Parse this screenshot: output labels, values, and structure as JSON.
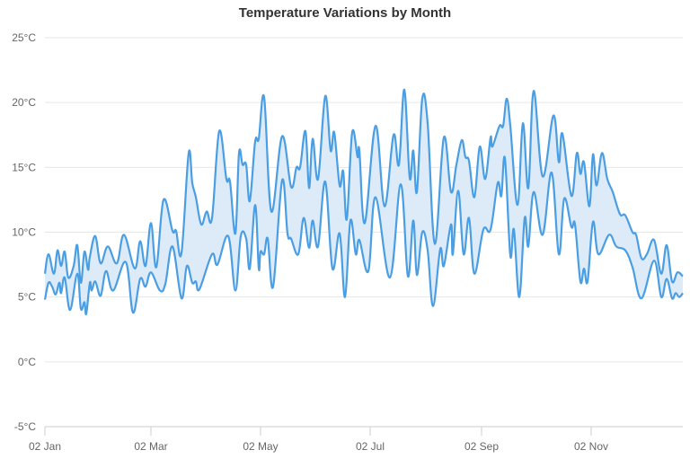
{
  "chart_data": {
    "type": "area",
    "subtype": "range",
    "title": "Temperature Variations by Month",
    "xlabel": "",
    "ylabel": "",
    "ylim": [
      -5,
      25
    ],
    "yticks": [
      -5,
      0,
      5,
      10,
      15,
      20,
      25
    ],
    "ytick_labels": [
      "-5°C",
      "0°C",
      "5°C",
      "10°C",
      "15°C",
      "20°C",
      "25°C"
    ],
    "xticks": [
      "02 Jan",
      "02 Mar",
      "02 May",
      "02 Jul",
      "02 Sep",
      "02 Nov"
    ],
    "xlim": [
      "02 Jan",
      "23 Dec"
    ],
    "grid": true,
    "legend": "none",
    "colors": {
      "line": "#4a9ee3",
      "fill": "#ddebf9",
      "grid": "#e6e6e6",
      "axis": "#cccccc",
      "text": "#666666",
      "title": "#333333"
    },
    "series": [
      {
        "role": "high",
        "points": [
          [
            "02 Jan",
            6.8
          ],
          [
            "04 Jan",
            8.3
          ],
          [
            "07 Jan",
            6.8
          ],
          [
            "09 Jan",
            8.6
          ],
          [
            "11 Jan",
            7.4
          ],
          [
            "13 Jan",
            8.5
          ],
          [
            "15 Jan",
            6.5
          ],
          [
            "18 Jan",
            7.4
          ],
          [
            "20 Jan",
            9.0
          ],
          [
            "22 Jan",
            6.1
          ],
          [
            "24 Jan",
            8.5
          ],
          [
            "26 Jan",
            7.1
          ],
          [
            "27 Jan",
            8.1
          ],
          [
            "30 Jan",
            9.7
          ],
          [
            "02 Feb",
            7.6
          ],
          [
            "06 Feb",
            8.9
          ],
          [
            "11 Feb",
            7.6
          ],
          [
            "15 Feb",
            9.8
          ],
          [
            "21 Feb",
            7.2
          ],
          [
            "24 Feb",
            9.3
          ],
          [
            "27 Feb",
            7.4
          ],
          [
            "02 Mar",
            10.7
          ],
          [
            "05 Mar",
            7.3
          ],
          [
            "09 Mar",
            12.5
          ],
          [
            "14 Mar",
            10.1
          ],
          [
            "16 Mar",
            10.1
          ],
          [
            "19 Mar",
            8.4
          ],
          [
            "23 Mar",
            16.1
          ],
          [
            "25 Mar",
            13.8
          ],
          [
            "27 Mar",
            12.7
          ],
          [
            "30 Mar",
            10.6
          ],
          [
            "02 Apr",
            11.6
          ],
          [
            "05 Apr",
            11.1
          ],
          [
            "09 Apr",
            17.8
          ],
          [
            "13 Apr",
            14.1
          ],
          [
            "15 Apr",
            13.9
          ],
          [
            "18 Apr",
            9.9
          ],
          [
            "20 Apr",
            16.1
          ],
          [
            "22 Apr",
            15.2
          ],
          [
            "24 Apr",
            15.2
          ],
          [
            "26 Apr",
            12.4
          ],
          [
            "29 Apr",
            17.0
          ],
          [
            "01 May",
            17.2
          ],
          [
            "04 May",
            20.4
          ],
          [
            "08 May",
            11.6
          ],
          [
            "14 May",
            17.4
          ],
          [
            "19 May",
            13.5
          ],
          [
            "22 May",
            15.0
          ],
          [
            "24 May",
            15.0
          ],
          [
            "27 May",
            17.8
          ],
          [
            "29 May",
            13.4
          ],
          [
            "31 May",
            17.2
          ],
          [
            "03 Jun",
            14.1
          ],
          [
            "07 Jun",
            20.5
          ],
          [
            "10 Jun",
            16.3
          ],
          [
            "12 Jun",
            17.7
          ],
          [
            "15 Jun",
            13.6
          ],
          [
            "17 Jun",
            14.7
          ],
          [
            "19 Jun",
            11.0
          ],
          [
            "22 Jun",
            17.7
          ],
          [
            "25 Jun",
            15.8
          ],
          [
            "26 Jun",
            16.3
          ],
          [
            "29 Jun",
            10.7
          ],
          [
            "05 Jul",
            18.2
          ],
          [
            "10 Jul",
            12.0
          ],
          [
            "15 Jul",
            17.5
          ],
          [
            "18 Jul",
            15.2
          ],
          [
            "21 Jul",
            21.0
          ],
          [
            "24 Jul",
            14.2
          ],
          [
            "26 Jul",
            16.3
          ],
          [
            "28 Jul",
            13.1
          ],
          [
            "31 Jul",
            20.3
          ],
          [
            "03 Aug",
            18.4
          ],
          [
            "07 Aug",
            9.1
          ],
          [
            "12 Aug",
            17.3
          ],
          [
            "16 Aug",
            13.1
          ],
          [
            "19 Aug",
            15.2
          ],
          [
            "22 Aug",
            17.1
          ],
          [
            "24 Aug",
            15.8
          ],
          [
            "26 Aug",
            15.5
          ],
          [
            "29 Aug",
            12.7
          ],
          [
            "01 Sep",
            16.6
          ],
          [
            "04 Sep",
            14.1
          ],
          [
            "07 Sep",
            17.3
          ],
          [
            "08 Sep",
            16.6
          ],
          [
            "12 Sep",
            18.2
          ],
          [
            "14 Sep",
            18.2
          ],
          [
            "16 Sep",
            20.3
          ],
          [
            "18 Sep",
            18.2
          ],
          [
            "22 Sep",
            12.1
          ],
          [
            "25 Sep",
            18.4
          ],
          [
            "28 Sep",
            13.4
          ],
          [
            "01 Oct",
            20.9
          ],
          [
            "06 Oct",
            14.3
          ],
          [
            "12 Oct",
            19.0
          ],
          [
            "15 Oct",
            15.4
          ],
          [
            "17 Oct",
            17.6
          ],
          [
            "22 Oct",
            12.8
          ],
          [
            "25 Oct",
            16.1
          ],
          [
            "27 Oct",
            14.5
          ],
          [
            "29 Oct",
            15.4
          ],
          [
            "01 Nov",
            12.0
          ],
          [
            "03 Nov",
            16.0
          ],
          [
            "05 Nov",
            13.6
          ],
          [
            "08 Nov",
            16.1
          ],
          [
            "11 Nov",
            14.1
          ],
          [
            "14 Nov",
            13.1
          ],
          [
            "18 Nov",
            11.4
          ],
          [
            "21 Nov",
            11.3
          ],
          [
            "25 Nov",
            10.0
          ],
          [
            "27 Nov",
            9.8
          ],
          [
            "30 Nov",
            8.0
          ],
          [
            "03 Dec",
            8.3
          ],
          [
            "07 Dec",
            9.4
          ],
          [
            "11 Dec",
            6.8
          ],
          [
            "14 Dec",
            9.0
          ],
          [
            "17 Dec",
            6.2
          ],
          [
            "20 Dec",
            6.9
          ],
          [
            "23 Dec",
            6.6
          ]
        ]
      },
      {
        "role": "low",
        "points": [
          [
            "02 Jan",
            4.8
          ],
          [
            "04 Jan",
            6.1
          ],
          [
            "06 Jan",
            5.8
          ],
          [
            "08 Jan",
            5.2
          ],
          [
            "10 Jan",
            6.1
          ],
          [
            "11 Jan",
            5.3
          ],
          [
            "13 Jan",
            6.5
          ],
          [
            "16 Jan",
            4.0
          ],
          [
            "20 Jan",
            6.8
          ],
          [
            "22 Jan",
            4.1
          ],
          [
            "24 Jan",
            4.6
          ],
          [
            "25 Jan",
            3.7
          ],
          [
            "27 Jan",
            6.1
          ],
          [
            "28 Jan",
            5.5
          ],
          [
            "30 Jan",
            6.2
          ],
          [
            "02 Feb",
            5.1
          ],
          [
            "05 Feb",
            7.0
          ],
          [
            "09 Feb",
            5.5
          ],
          [
            "16 Feb",
            7.7
          ],
          [
            "20 Feb",
            3.8
          ],
          [
            "24 Feb",
            6.4
          ],
          [
            "27 Feb",
            5.8
          ],
          [
            "02 Mar",
            6.9
          ],
          [
            "07 Mar",
            5.5
          ],
          [
            "10 Mar",
            6.0
          ],
          [
            "14 Mar",
            8.9
          ],
          [
            "19 Mar",
            4.9
          ],
          [
            "22 Mar",
            7.4
          ],
          [
            "25 Mar",
            6.1
          ],
          [
            "27 Mar",
            6.2
          ],
          [
            "29 Mar",
            5.6
          ],
          [
            "05 Apr",
            8.3
          ],
          [
            "08 Apr",
            7.5
          ],
          [
            "14 Apr",
            9.7
          ],
          [
            "18 Apr",
            5.5
          ],
          [
            "21 Apr",
            9.7
          ],
          [
            "24 Apr",
            9.5
          ],
          [
            "26 Apr",
            7.2
          ],
          [
            "29 Apr",
            12.1
          ],
          [
            "01 May",
            7.2
          ],
          [
            "02 May",
            8.5
          ],
          [
            "04 May",
            8.3
          ],
          [
            "06 May",
            9.5
          ],
          [
            "09 May",
            5.8
          ],
          [
            "14 May",
            14.0
          ],
          [
            "17 May",
            9.9
          ],
          [
            "19 May",
            9.5
          ],
          [
            "23 May",
            8.3
          ],
          [
            "26 May",
            11.1
          ],
          [
            "29 May",
            8.8
          ],
          [
            "31 May",
            10.9
          ],
          [
            "03 Jun",
            8.9
          ],
          [
            "07 Jun",
            13.9
          ],
          [
            "11 Jun",
            7.2
          ],
          [
            "15 Jun",
            9.9
          ],
          [
            "18 Jun",
            5.0
          ],
          [
            "21 Jun",
            10.9
          ],
          [
            "24 Jun",
            8.3
          ],
          [
            "26 Jun",
            9.4
          ],
          [
            "01 Jul",
            7.0
          ],
          [
            "05 Jul",
            12.7
          ],
          [
            "13 Jul",
            6.5
          ],
          [
            "19 Jul",
            13.7
          ],
          [
            "23 Jul",
            6.6
          ],
          [
            "26 Jul",
            10.9
          ],
          [
            "28 Jul",
            6.7
          ],
          [
            "31 Jul",
            10.0
          ],
          [
            "03 Aug",
            8.6
          ],
          [
            "06 Aug",
            4.3
          ],
          [
            "10 Aug",
            8.7
          ],
          [
            "12 Aug",
            7.4
          ],
          [
            "16 Aug",
            10.6
          ],
          [
            "17 Aug",
            8.3
          ],
          [
            "20 Aug",
            13.2
          ],
          [
            "23 Aug",
            8.3
          ],
          [
            "26 Aug",
            11.1
          ],
          [
            "29 Aug",
            6.8
          ],
          [
            "03 Sep",
            10.2
          ],
          [
            "07 Sep",
            10.2
          ],
          [
            "11 Sep",
            13.8
          ],
          [
            "13 Sep",
            12.8
          ],
          [
            "15 Sep",
            15.7
          ],
          [
            "18 Sep",
            8.2
          ],
          [
            "20 Sep",
            10.2
          ],
          [
            "23 Sep",
            5.0
          ],
          [
            "26 Sep",
            11.1
          ],
          [
            "28 Sep",
            8.9
          ],
          [
            "01 Oct",
            13.1
          ],
          [
            "06 Oct",
            9.8
          ],
          [
            "11 Oct",
            14.6
          ],
          [
            "15 Oct",
            8.3
          ],
          [
            "18 Oct",
            12.6
          ],
          [
            "22 Oct",
            10.4
          ],
          [
            "24 Oct",
            10.6
          ],
          [
            "27 Oct",
            6.2
          ],
          [
            "29 Oct",
            7.2
          ],
          [
            "31 Oct",
            6.2
          ],
          [
            "03 Nov",
            10.8
          ],
          [
            "06 Nov",
            8.3
          ],
          [
            "12 Nov",
            9.8
          ],
          [
            "16 Nov",
            8.9
          ],
          [
            "21 Nov",
            8.6
          ],
          [
            "25 Nov",
            7.3
          ],
          [
            "30 Nov",
            4.9
          ],
          [
            "07 Dec",
            7.8
          ],
          [
            "11 Dec",
            5.0
          ],
          [
            "14 Dec",
            6.4
          ],
          [
            "17 Dec",
            4.9
          ],
          [
            "19 Dec",
            5.3
          ],
          [
            "21 Dec",
            5.0
          ],
          [
            "23 Dec",
            5.3
          ]
        ]
      }
    ]
  }
}
